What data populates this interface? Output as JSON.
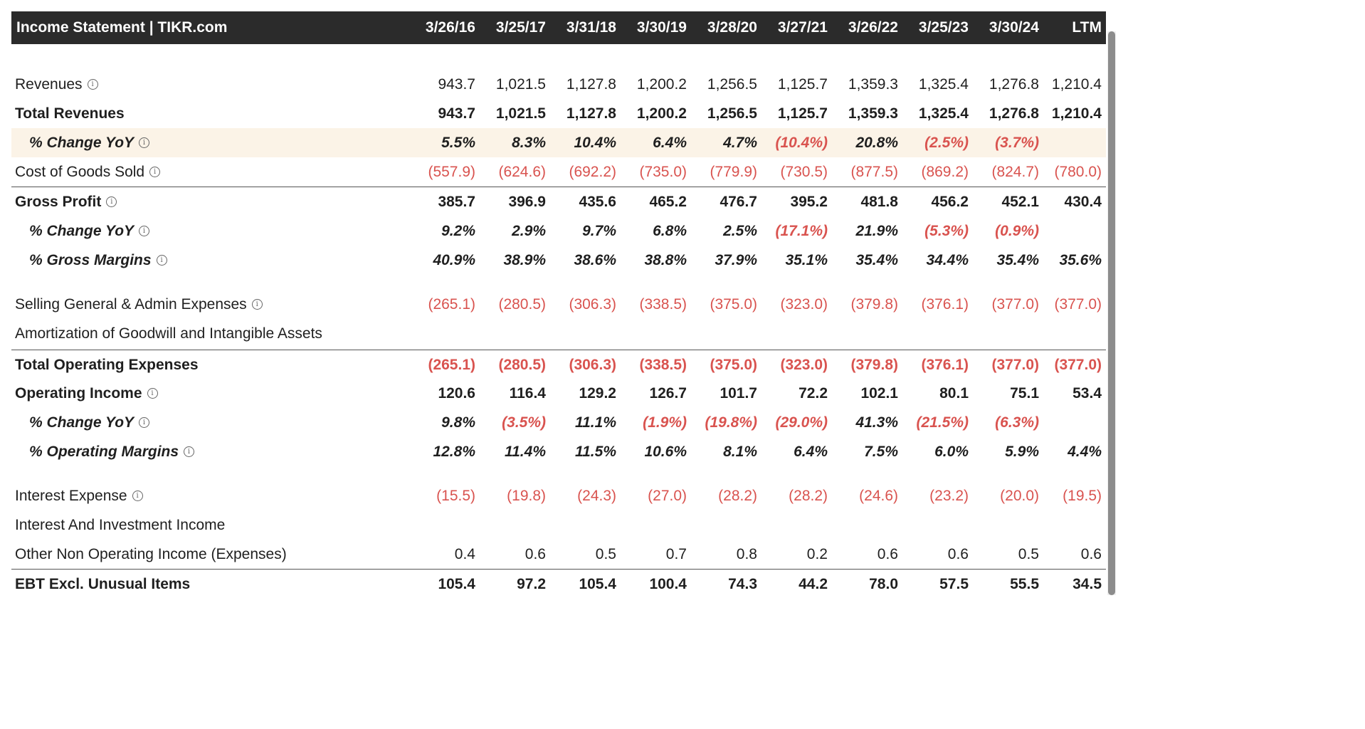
{
  "header": {
    "title": "Income Statement | TIKR.com",
    "columns": [
      "3/26/16",
      "3/25/17",
      "3/31/18",
      "3/30/19",
      "3/28/20",
      "3/27/21",
      "3/26/22",
      "3/25/23",
      "3/30/24",
      "LTM"
    ]
  },
  "icons": {
    "info": "info-circle-icon"
  },
  "colors": {
    "header_bg": "#2b2b2b",
    "negative": "#d9534f",
    "highlight": "#fbf3e7"
  },
  "rows": [
    {
      "label": "Revenues",
      "info": true,
      "style": "normal",
      "values": [
        "943.7",
        "1,021.5",
        "1,127.8",
        "1,200.2",
        "1,256.5",
        "1,125.7",
        "1,359.3",
        "1,325.4",
        "1,276.8",
        "1,210.4"
      ]
    },
    {
      "label": "Total Revenues",
      "info": false,
      "style": "bold",
      "values": [
        "943.7",
        "1,021.5",
        "1,127.8",
        "1,200.2",
        "1,256.5",
        "1,125.7",
        "1,359.3",
        "1,325.4",
        "1,276.8",
        "1,210.4"
      ]
    },
    {
      "label": "% Change YoY",
      "info": true,
      "style": "pct",
      "values": [
        "5.5%",
        "8.3%",
        "10.4%",
        "6.4%",
        "4.7%",
        "(10.4%)",
        "20.8%",
        "(2.5%)",
        "(3.7%)",
        ""
      ]
    },
    {
      "label": "Cost of Goods Sold",
      "info": true,
      "style": "normal",
      "values": [
        "(557.9)",
        "(624.6)",
        "(692.2)",
        "(735.0)",
        "(779.9)",
        "(730.5)",
        "(877.5)",
        "(869.2)",
        "(824.7)",
        "(780.0)"
      ]
    },
    {
      "label": "Gross Profit",
      "info": true,
      "style": "bold",
      "values": [
        "385.7",
        "396.9",
        "435.6",
        "465.2",
        "476.7",
        "395.2",
        "481.8",
        "456.2",
        "452.1",
        "430.4"
      ]
    },
    {
      "label": "% Change YoY",
      "info": true,
      "style": "pct",
      "values": [
        "9.2%",
        "2.9%",
        "9.7%",
        "6.8%",
        "2.5%",
        "(17.1%)",
        "21.9%",
        "(5.3%)",
        "(0.9%)",
        ""
      ]
    },
    {
      "label": "% Gross Margins",
      "info": true,
      "style": "pct",
      "values": [
        "40.9%",
        "38.9%",
        "38.6%",
        "38.8%",
        "37.9%",
        "35.1%",
        "35.4%",
        "34.4%",
        "35.4%",
        "35.6%"
      ]
    },
    {
      "label": "Selling General & Admin Expenses",
      "info": true,
      "style": "normal",
      "values": [
        "(265.1)",
        "(280.5)",
        "(306.3)",
        "(338.5)",
        "(375.0)",
        "(323.0)",
        "(379.8)",
        "(376.1)",
        "(377.0)",
        "(377.0)"
      ]
    },
    {
      "label": "Amortization of Goodwill and Intangible Assets",
      "info": false,
      "style": "normal",
      "values": [
        "",
        "",
        "",
        "",
        "",
        "",
        "",
        "",
        "",
        ""
      ]
    },
    {
      "label": "Total Operating Expenses",
      "info": false,
      "style": "bold",
      "values": [
        "(265.1)",
        "(280.5)",
        "(306.3)",
        "(338.5)",
        "(375.0)",
        "(323.0)",
        "(379.8)",
        "(376.1)",
        "(377.0)",
        "(377.0)"
      ]
    },
    {
      "label": "Operating Income",
      "info": true,
      "style": "bold",
      "values": [
        "120.6",
        "116.4",
        "129.2",
        "126.7",
        "101.7",
        "72.2",
        "102.1",
        "80.1",
        "75.1",
        "53.4"
      ]
    },
    {
      "label": "% Change YoY",
      "info": true,
      "style": "pct",
      "values": [
        "9.8%",
        "(3.5%)",
        "11.1%",
        "(1.9%)",
        "(19.8%)",
        "(29.0%)",
        "41.3%",
        "(21.5%)",
        "(6.3%)",
        ""
      ]
    },
    {
      "label": "% Operating Margins",
      "info": true,
      "style": "pct",
      "values": [
        "12.8%",
        "11.4%",
        "11.5%",
        "10.6%",
        "8.1%",
        "6.4%",
        "7.5%",
        "6.0%",
        "5.9%",
        "4.4%"
      ]
    },
    {
      "label": "Interest Expense",
      "info": true,
      "style": "normal",
      "values": [
        "(15.5)",
        "(19.8)",
        "(24.3)",
        "(27.0)",
        "(28.2)",
        "(28.2)",
        "(24.6)",
        "(23.2)",
        "(20.0)",
        "(19.5)"
      ]
    },
    {
      "label": "Interest And Investment Income",
      "info": false,
      "style": "normal",
      "values": [
        "",
        "",
        "",
        "",
        "",
        "",
        "",
        "",
        "",
        ""
      ]
    },
    {
      "label": "Other Non Operating Income (Expenses)",
      "info": false,
      "style": "normal",
      "values": [
        "0.4",
        "0.6",
        "0.5",
        "0.7",
        "0.8",
        "0.2",
        "0.6",
        "0.6",
        "0.5",
        "0.6"
      ]
    },
    {
      "label": "EBT Excl. Unusual Items",
      "info": false,
      "style": "bold",
      "values": [
        "105.4",
        "97.2",
        "105.4",
        "100.4",
        "74.3",
        "44.2",
        "78.0",
        "57.5",
        "55.5",
        "34.5"
      ]
    }
  ]
}
